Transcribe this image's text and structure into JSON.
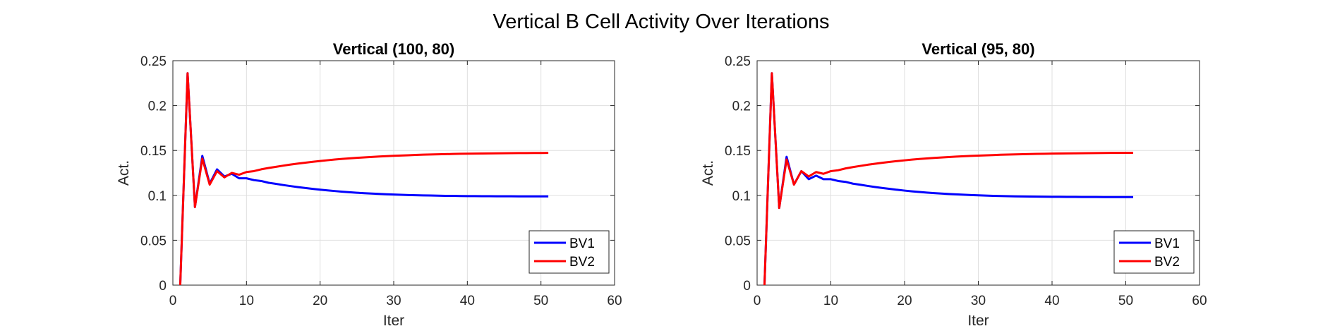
{
  "figure_title": "Vertical B Cell Activity Over Iterations",
  "colors": {
    "BV1": "#0000ff",
    "BV2": "#ff0000",
    "grid": "#dfdfdf",
    "axis": "#262626"
  },
  "chart_data": [
    {
      "type": "line",
      "title": "Vertical (100, 80)",
      "xlabel": "Iter",
      "ylabel": "Act.",
      "xlim": [
        0,
        60
      ],
      "ylim": [
        0,
        0.25
      ],
      "xticks": [
        0,
        10,
        20,
        30,
        40,
        50,
        60
      ],
      "yticks": [
        0,
        0.05,
        0.1,
        0.15,
        0.2,
        0.25
      ],
      "xtick_labels": [
        "0",
        "10",
        "20",
        "30",
        "40",
        "50",
        "60"
      ],
      "ytick_labels": [
        "0",
        "0.05",
        "0.1",
        "0.15",
        "0.2",
        "0.25"
      ],
      "grid": true,
      "legend_position": "bottom-right",
      "x": [
        1,
        2,
        3,
        4,
        5,
        6,
        7,
        8,
        9,
        10,
        11,
        12,
        13,
        14,
        15,
        16,
        17,
        18,
        19,
        20,
        21,
        22,
        23,
        24,
        25,
        26,
        27,
        28,
        29,
        30,
        31,
        32,
        33,
        34,
        35,
        36,
        37,
        38,
        39,
        40,
        41,
        42,
        43,
        44,
        45,
        46,
        47,
        48,
        49,
        50,
        51
      ],
      "series": [
        {
          "name": "BV1",
          "color": "#0000ff",
          "values": [
            0,
            0.236,
            0.087,
            0.144,
            0.113,
            0.129,
            0.121,
            0.124,
            0.119,
            0.119,
            0.117,
            0.116,
            0.114,
            0.1128,
            0.1115,
            0.1103,
            0.1092,
            0.1082,
            0.1072,
            0.1063,
            0.1055,
            0.1048,
            0.1041,
            0.1035,
            0.1029,
            0.1024,
            0.102,
            0.1016,
            0.1012,
            0.1009,
            0.1006,
            0.1003,
            0.1001,
            0.0999,
            0.0998,
            0.0996,
            0.0995,
            0.0994,
            0.0993,
            0.0992,
            0.0992,
            0.0991,
            0.0991,
            0.099,
            0.099,
            0.099,
            0.0989,
            0.0989,
            0.0989,
            0.0989,
            0.0989
          ]
        },
        {
          "name": "BV2",
          "color": "#ff0000",
          "values": [
            0,
            0.236,
            0.087,
            0.141,
            0.112,
            0.127,
            0.12,
            0.125,
            0.123,
            0.126,
            0.127,
            0.129,
            0.1305,
            0.1318,
            0.1331,
            0.1343,
            0.1354,
            0.1364,
            0.1374,
            0.1383,
            0.1391,
            0.1399,
            0.1406,
            0.1412,
            0.1418,
            0.1423,
            0.1428,
            0.1433,
            0.1437,
            0.1441,
            0.1444,
            0.1447,
            0.145,
            0.1453,
            0.1455,
            0.1457,
            0.1459,
            0.1461,
            0.1463,
            0.1464,
            0.1465,
            0.1466,
            0.1467,
            0.1468,
            0.1469,
            0.147,
            0.1471,
            0.1471,
            0.1472,
            0.1472,
            0.1473
          ]
        }
      ]
    },
    {
      "type": "line",
      "title": "Vertical (95, 80)",
      "xlabel": "Iter",
      "ylabel": "Act.",
      "xlim": [
        0,
        60
      ],
      "ylim": [
        0,
        0.25
      ],
      "xticks": [
        0,
        10,
        20,
        30,
        40,
        50,
        60
      ],
      "yticks": [
        0,
        0.05,
        0.1,
        0.15,
        0.2,
        0.25
      ],
      "xtick_labels": [
        "0",
        "10",
        "20",
        "30",
        "40",
        "50",
        "60"
      ],
      "ytick_labels": [
        "0",
        "0.05",
        "0.1",
        "0.15",
        "0.2",
        "0.25"
      ],
      "grid": true,
      "legend_position": "bottom-right",
      "x": [
        1,
        2,
        3,
        4,
        5,
        6,
        7,
        8,
        9,
        10,
        11,
        12,
        13,
        14,
        15,
        16,
        17,
        18,
        19,
        20,
        21,
        22,
        23,
        24,
        25,
        26,
        27,
        28,
        29,
        30,
        31,
        32,
        33,
        34,
        35,
        36,
        37,
        38,
        39,
        40,
        41,
        42,
        43,
        44,
        45,
        46,
        47,
        48,
        49,
        50,
        51
      ],
      "series": [
        {
          "name": "BV1",
          "color": "#0000ff",
          "values": [
            0,
            0.236,
            0.086,
            0.143,
            0.112,
            0.127,
            0.118,
            0.122,
            0.118,
            0.118,
            0.116,
            0.115,
            0.113,
            0.1118,
            0.1105,
            0.1093,
            0.1082,
            0.1072,
            0.1062,
            0.1053,
            0.1045,
            0.1038,
            0.1031,
            0.1025,
            0.102,
            0.1015,
            0.1011,
            0.1007,
            0.1003,
            0.1,
            0.0997,
            0.0995,
            0.0993,
            0.0991,
            0.0989,
            0.0988,
            0.0987,
            0.0986,
            0.0985,
            0.0984,
            0.0984,
            0.0983,
            0.0983,
            0.0982,
            0.0982,
            0.0982,
            0.0981,
            0.0981,
            0.0981,
            0.0981,
            0.0981
          ]
        },
        {
          "name": "BV2",
          "color": "#ff0000",
          "values": [
            0,
            0.236,
            0.086,
            0.14,
            0.112,
            0.127,
            0.121,
            0.126,
            0.124,
            0.127,
            0.128,
            0.13,
            0.1315,
            0.1328,
            0.1341,
            0.1352,
            0.1363,
            0.1373,
            0.1382,
            0.139,
            0.1398,
            0.1405,
            0.1411,
            0.1417,
            0.1422,
            0.1427,
            0.1432,
            0.1436,
            0.144,
            0.1443,
            0.1446,
            0.1449,
            0.1452,
            0.1454,
            0.1456,
            0.1458,
            0.146,
            0.1462,
            0.1463,
            0.1465,
            0.1466,
            0.1467,
            0.1468,
            0.1469,
            0.147,
            0.1471,
            0.1472,
            0.1473,
            0.1473,
            0.1474,
            0.1474
          ]
        }
      ]
    }
  ]
}
